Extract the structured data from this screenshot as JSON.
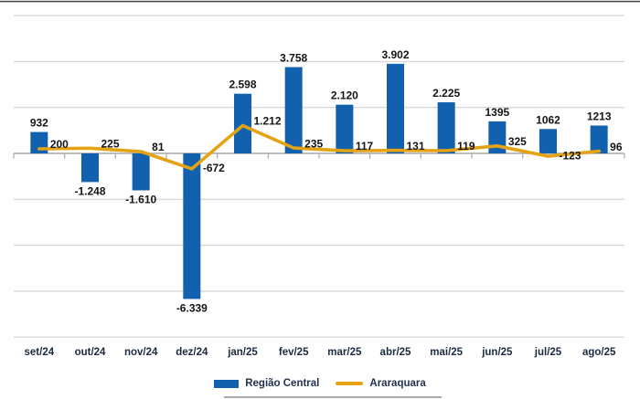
{
  "chart_data": {
    "type": "combo-bar-line",
    "categories": [
      "set/24",
      "out/24",
      "nov/24",
      "dez/24",
      "jan/25",
      "fev/25",
      "mar/25",
      "abr/25",
      "mai/25",
      "jun/25",
      "jul/25",
      "ago/25"
    ],
    "series": [
      {
        "name": "Região Central",
        "type": "bar",
        "color": "#1261AE",
        "values": [
          932,
          -1248,
          -1610,
          -6339,
          2598,
          3758,
          2120,
          3902,
          2225,
          1395,
          1062,
          1213
        ],
        "labels": [
          "932",
          "-1.248",
          "-1.610",
          "-6.339",
          "2.598",
          "3.758",
          "2.120",
          "3.902",
          "2.225",
          "1395",
          "1062",
          "1213"
        ]
      },
      {
        "name": "Araraquara",
        "type": "line",
        "color": "#E3A313",
        "values": [
          200,
          225,
          81,
          -672,
          1212,
          235,
          117,
          131,
          119,
          325,
          -123,
          96
        ],
        "labels": [
          "200",
          "225",
          "81",
          "-672",
          "1.212",
          "235",
          "117",
          "131",
          "119",
          "325",
          "-123",
          "96"
        ]
      }
    ],
    "title": "",
    "xlabel": "",
    "ylabel": "",
    "ylim": [
      -8000,
      6000
    ],
    "grid_interval": 2000,
    "grid": true,
    "y_axis_tick_labels_visible": false,
    "legend_position": "bottom",
    "grid_color": "#D9D9D9",
    "axis_color": "#A8A8A8",
    "data_label_color": "#141414",
    "category_label_color": "#1B2A41",
    "top_border_color": "#4a4a4a"
  },
  "legend": {
    "items": [
      {
        "label": "Região Central"
      },
      {
        "label": "Araraquara"
      }
    ]
  }
}
